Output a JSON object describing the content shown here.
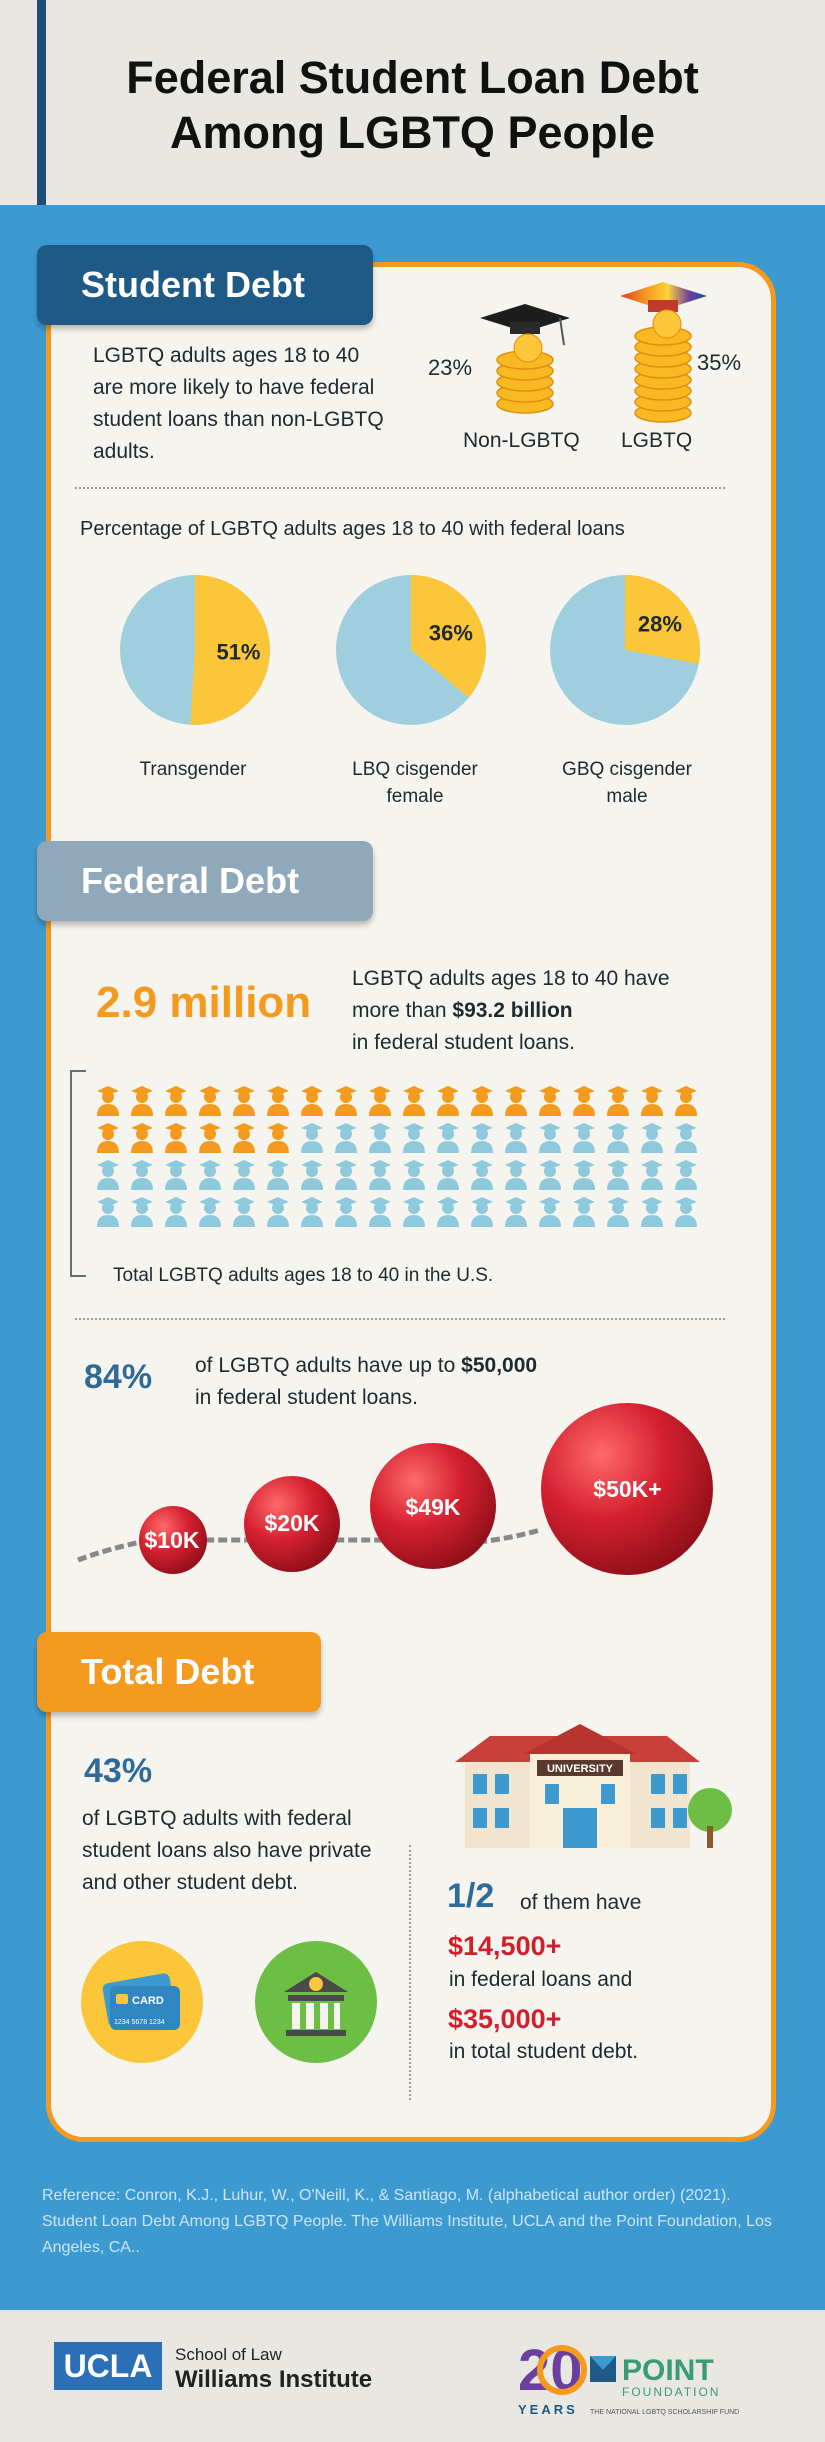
{
  "title_line1": "Federal Student Loan Debt",
  "title_line2": "Among LGBTQ People",
  "student_debt": {
    "heading": "Student Debt",
    "intro": "LGBTQ adults ages 18 to 40 are more likely to have federal student loans than non-LGBTQ adults.",
    "non_lgbtq_pct": "23%",
    "non_lgbtq_label": "Non-LGBTQ",
    "lgbtq_pct": "35%",
    "lgbtq_label": "LGBTQ",
    "pies_caption": "Percentage of LGBTQ adults ages 18 to 40 with federal loans",
    "pies": [
      {
        "label_line1": "Transgender",
        "label_line2": "",
        "pct_text": "51%",
        "value": 51
      },
      {
        "label_line1": "LBQ cisgender",
        "label_line2": "female",
        "pct_text": "36%",
        "value": 36
      },
      {
        "label_line1": "GBQ cisgender",
        "label_line2": "male",
        "pct_text": "28%",
        "value": 28
      }
    ]
  },
  "federal_debt": {
    "heading": "Federal Debt",
    "big_number": "2.9 million",
    "desc_line1": "LGBTQ adults ages 18 to 40 have",
    "desc_line2_pre": "more than ",
    "desc_line2_bold": "$93.2 billion",
    "desc_line3": "in federal student loans.",
    "people_caption": "Total LGBTQ adults ages 18 to 40 in the U.S.",
    "people_highlighted_fraction": 0.33,
    "pct": "84%",
    "pct_desc_pre": "of LGBTQ adults have up to ",
    "pct_desc_bold": "$50,000",
    "pct_desc_line2": "in federal student loans.",
    "balls": [
      "$10K",
      "$20K",
      "$49K",
      "$50K+"
    ]
  },
  "total_debt": {
    "heading": "Total Debt",
    "pct": "43%",
    "desc": "of LGBTQ adults with federal student loans also have private and other student debt.",
    "card_label": "CARD",
    "card_number": "1234 5678 1234",
    "university_sign": "UNIVERSITY",
    "fraction": "1/2",
    "fraction_desc": "of them have",
    "amount1": "$14,500+",
    "amount1_desc": "in federal loans and",
    "amount2": "$35,000+",
    "amount2_desc": "in total student debt."
  },
  "reference": "Reference: Conron, K.J., Luhur, W., O'Neill, K., & Santiago, M. (alphabetical author order) (2021). Student Loan Debt Among LGBTQ People. The Williams Institute, UCLA and the Point Foundation, Los Angeles, CA..",
  "footer": {
    "ucla": "UCLA",
    "school_of_law": "School of Law",
    "williams": "Williams Institute",
    "point_20": "20",
    "point_years": "YEARS",
    "point_name": "POINT",
    "point_foundation": "FOUNDATION",
    "point_tagline": "THE NATIONAL LGBTQ SCHOLARSHIP FUND"
  },
  "colors": {
    "orange": "#f39a1f",
    "navy": "#1f5986",
    "blue_band": "#3d9ad1",
    "pie_yellow": "#fcc63a",
    "pie_blue": "#9fcfdf",
    "red": "#d0202d",
    "person_orange": "#f39a1f",
    "person_blue": "#8ec9dc"
  }
}
